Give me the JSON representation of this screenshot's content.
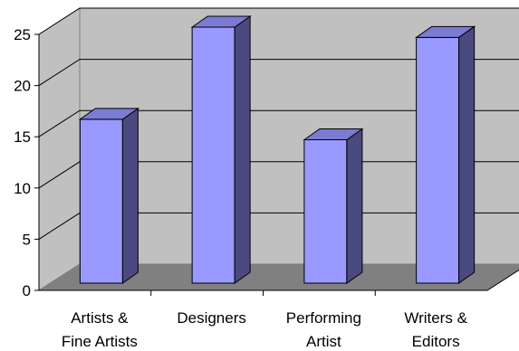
{
  "chart_data": {
    "type": "bar",
    "categories": [
      [
        "Artists &",
        "Fine Artists"
      ],
      [
        "Designers"
      ],
      [
        "Performing",
        "Artist"
      ],
      [
        "Writers &",
        "Editors"
      ]
    ],
    "values": [
      16,
      25,
      14,
      24
    ],
    "ylim": [
      0,
      25
    ],
    "yticks": [
      "0",
      "5",
      "10",
      "15",
      "20",
      "25"
    ],
    "grid": true,
    "three_d": true,
    "colors": {
      "bar_front": "#9999ff",
      "bar_side": "#4a4a80",
      "bar_top": "#7b7bd4",
      "wall": "#c0c0c0",
      "floor": "#808080",
      "gridline": "#000000"
    }
  }
}
